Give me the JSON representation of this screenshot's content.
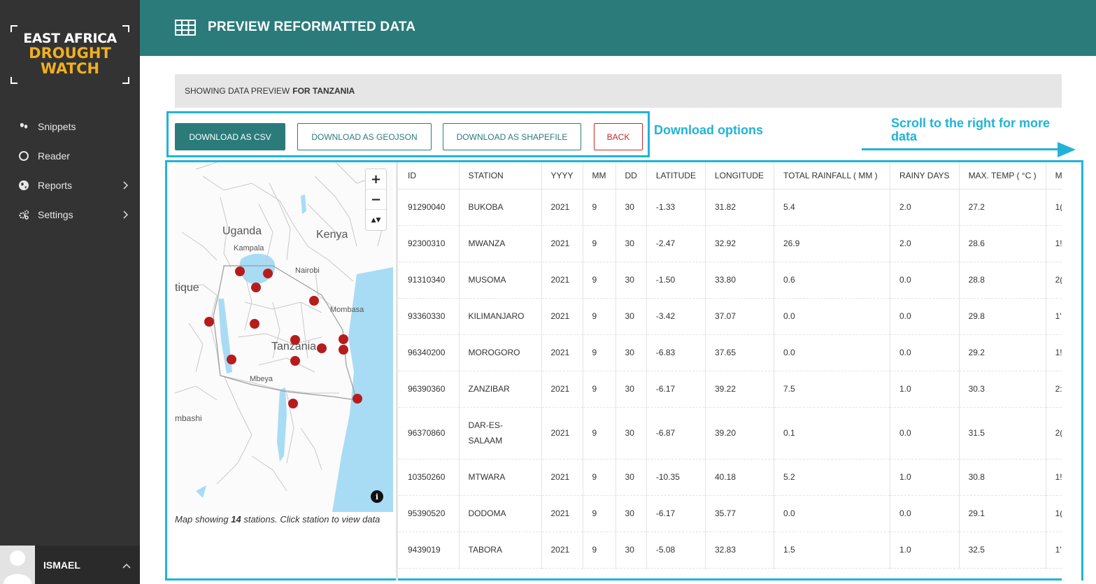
{
  "app": {
    "logo": {
      "line1": "EAST AFRICA",
      "line2": "DROUGHT",
      "line3": "WATCH"
    },
    "nav": [
      {
        "label": "Snippets",
        "icon": "snippets-icon"
      },
      {
        "label": "Reader",
        "icon": "circle-icon"
      },
      {
        "label": "Reports",
        "icon": "globe-icon",
        "has_submenu": true
      },
      {
        "label": "Settings",
        "icon": "cogs-icon",
        "has_submenu": true
      }
    ],
    "user": {
      "name": "ISMAEL"
    }
  },
  "header": {
    "title": "PREVIEW REFORMATTED DATA",
    "icon": "table-icon"
  },
  "info": {
    "prefix": "SHOWING DATA PREVIEW",
    "country": "FOR TANZANIA"
  },
  "buttons": {
    "csv": "DOWNLOAD AS CSV",
    "geojson": "DOWNLOAD AS GEOJSON",
    "shapefile": "DOWNLOAD AS SHAPEFILE",
    "back": "BACK"
  },
  "annotations": {
    "download": "Download options",
    "scroll_line1": "Scroll to the right for more",
    "scroll_line2": "data"
  },
  "map": {
    "zoom_in": "+",
    "zoom_out": "−",
    "reset": "▲▼",
    "info": "i",
    "labels": {
      "uganda": "Uganda",
      "kenya": "Kenya",
      "kampala": "Kampala",
      "nairobi": "Nairobi",
      "mombasa": "Mombasa",
      "tanzania": "Tanzania",
      "mbeya": "Mbeya",
      "tique": "tique",
      "mbashi": "mbashi"
    },
    "caption_pre": "Map showing",
    "caption_count": "14",
    "caption_post": "stations. Click station to view data",
    "marker_color": "#b71c1c",
    "water_color": "#a8dcf5"
  },
  "table": {
    "columns": [
      "ID",
      "STATION",
      "YYYY",
      "MM",
      "DD",
      "LATITUDE",
      "LONGITUDE",
      "TOTAL RAINFALL ( MM )",
      "RAINY DAYS",
      "MAX. TEMP ( °C )",
      "M"
    ],
    "rows": [
      [
        "91290040",
        "BUKOBA",
        "2021",
        "9",
        "30",
        "-1.33",
        "31.82",
        "5.4",
        "2.0",
        "27.2",
        "1("
      ],
      [
        "92300310",
        "MWANZA",
        "2021",
        "9",
        "30",
        "-2.47",
        "32.92",
        "26.9",
        "2.0",
        "28.6",
        "1!"
      ],
      [
        "91310340",
        "MUSOMA",
        "2021",
        "9",
        "30",
        "-1.50",
        "33.80",
        "0.6",
        "0.0",
        "28.8",
        "2("
      ],
      [
        "93360330",
        "KILIMANJARO",
        "2021",
        "9",
        "30",
        "-3.42",
        "37.07",
        "0.0",
        "0.0",
        "29.8",
        "1'"
      ],
      [
        "96340200",
        "MOROGORO",
        "2021",
        "9",
        "30",
        "-6.83",
        "37.65",
        "0.0",
        "0.0",
        "29.2",
        "1!"
      ],
      [
        "96390360",
        "ZANZIBAR",
        "2021",
        "9",
        "30",
        "-6.17",
        "39.22",
        "7.5",
        "1.0",
        "30.3",
        "2:"
      ],
      [
        "96370860",
        "DAR-ES-SALAAM",
        "2021",
        "9",
        "30",
        "-6.87",
        "39.20",
        "0.1",
        "0.0",
        "31.5",
        "2("
      ],
      [
        "10350260",
        "MTWARA",
        "2021",
        "9",
        "30",
        "-10.35",
        "40.18",
        "5.2",
        "1.0",
        "30.8",
        "1!"
      ],
      [
        "95390520",
        "DODOMA",
        "2021",
        "9",
        "30",
        "-6.17",
        "35.77",
        "0.0",
        "0.0",
        "29.1",
        "1("
      ],
      [
        "9439019",
        "TABORA",
        "2021",
        "9",
        "30",
        "-5.08",
        "32.83",
        "1.5",
        "1.0",
        "32.5",
        "1'"
      ]
    ]
  },
  "colors": {
    "accent": "#2b7b7b",
    "sidebar": "#333333",
    "logo_yellow": "#f2b01e",
    "annotation": "#21b3d6",
    "back": "#c62828"
  }
}
